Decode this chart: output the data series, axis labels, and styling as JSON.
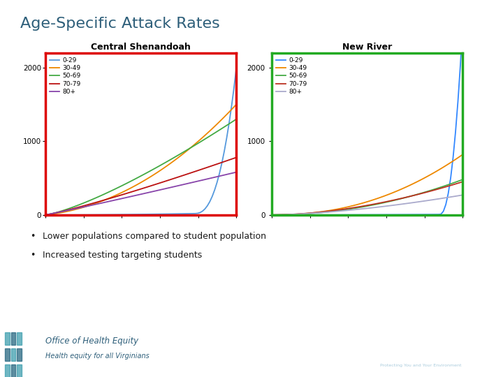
{
  "title": "Age-Specific Attack Rates",
  "title_color": "#2E5F7A",
  "title_fontsize": 16,
  "chart1_title": "Central Shenandoah",
  "chart2_title": "New River",
  "chart1_border_color": "#dd0000",
  "chart2_border_color": "#22aa22",
  "age_groups": [
    "0-29",
    "30-49",
    "50-69",
    "70-79",
    "80+"
  ],
  "line_colors_cs": [
    "#5599dd",
    "#ee8800",
    "#44aa44",
    "#bb1111",
    "#8844aa"
  ],
  "line_colors_nr": [
    "#3388ff",
    "#ee8800",
    "#44aa44",
    "#bb3322",
    "#aaaacc"
  ],
  "n_points": 80,
  "bullet1": "Lower populations compared to student population",
  "bullet2": "Increased testing targeting students",
  "background_color": "#ffffff",
  "chart_bg": "#ffffff",
  "ylim": [
    0,
    2200
  ],
  "yticks": [
    0,
    1000,
    2000
  ],
  "footer_bg1": "#1a3a5c",
  "footer_bg2": "#2e7a8a",
  "footer_text": "Office of Health Equity",
  "footer_sub": "Health equity for all Virginians"
}
